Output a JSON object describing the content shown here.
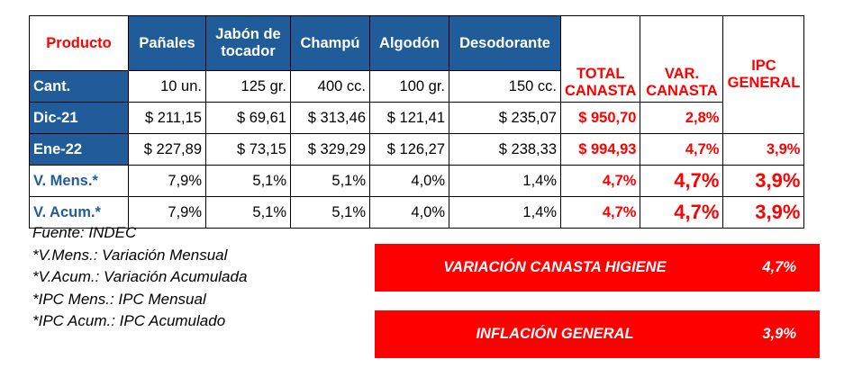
{
  "header": {
    "producto": "Producto",
    "panales": "Pañales",
    "jabon": "Jabón de tocador",
    "champu": "Champú",
    "algodon": "Algodón",
    "desodorante": "Desodorante",
    "total": "TOTAL CANASTA",
    "var": "VAR. CANASTA",
    "ipc": "IPC GENERAL"
  },
  "rows": {
    "cant": {
      "label": "Cant.",
      "values": [
        "10 un.",
        "125 gr.",
        "400 cc.",
        "100 gr.",
        "150 cc."
      ]
    },
    "dic": {
      "label": "Dic-21",
      "values": [
        "$ 211,15",
        "$ 69,61",
        "$ 313,46",
        "$ 121,41",
        "$ 235,07"
      ],
      "total": "$ 950,70",
      "var": "2,8%"
    },
    "ene": {
      "label": "Ene-22",
      "values": [
        "$ 227,89",
        "$ 73,15",
        "$ 329,29",
        "$ 126,27",
        "$ 238,33"
      ],
      "total": "$ 994,93",
      "var": "4,7%",
      "ipc": "3,9%"
    },
    "vmens": {
      "label": "V. Mens.*",
      "values": [
        "7,9%",
        "5,1%",
        "5,1%",
        "4,0%",
        "1,4%"
      ],
      "total": "4,7%",
      "var": "4,7%",
      "ipc": "3,9%"
    },
    "vacum": {
      "label": "V. Acum.*",
      "values": [
        "7,9%",
        "5,1%",
        "5,1%",
        "4,0%",
        "1,4%"
      ],
      "total": "4,7%",
      "var": "4,7%",
      "ipc": "3,9%"
    }
  },
  "notes": [
    "Fuente: INDEC",
    "*V.Mens.: Variación Mensual",
    "*V.Acum.: Variación Acumulada",
    "*IPC Mens.: IPC Mensual",
    "*IPC Acum.: IPC Acumulado"
  ],
  "banners": {
    "canasta": {
      "label": "VARIACIÓN CANASTA HIGIENE",
      "value": "4,7%"
    },
    "inflacion": {
      "label": "INFLACIÓN GENERAL",
      "value": "3,9%"
    }
  },
  "colors": {
    "header_blue": "#1f5c99",
    "accent_red": "#ff0000"
  }
}
